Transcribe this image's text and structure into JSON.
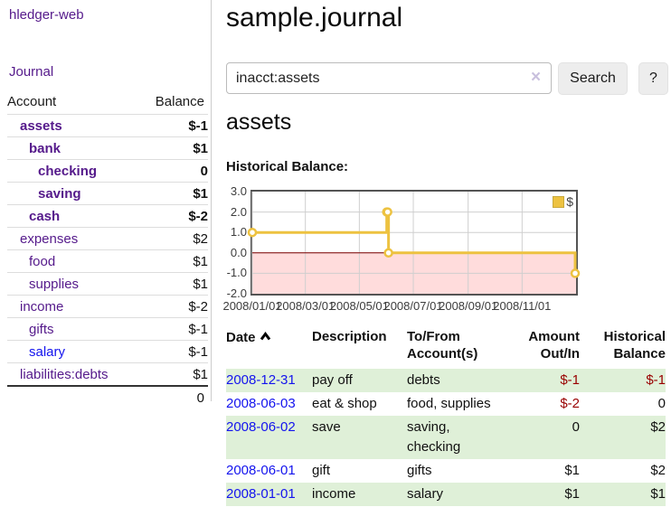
{
  "app": {
    "title": "hledger-web",
    "nav_journal": "Journal"
  },
  "sidebar": {
    "col_account": "Account",
    "col_balance": "Balance",
    "accounts": [
      {
        "name": "assets",
        "indent": 1,
        "bold": true,
        "balance": "$-1",
        "negative": true
      },
      {
        "name": "bank",
        "indent": 2,
        "bold": true,
        "balance": "$1"
      },
      {
        "name": "checking",
        "indent": 3,
        "bold": true,
        "balance": "0"
      },
      {
        "name": "saving",
        "indent": 3,
        "bold": true,
        "balance": "$1"
      },
      {
        "name": "cash",
        "indent": 2,
        "bold": true,
        "balance": "$-2",
        "negative": true
      },
      {
        "name": "expenses",
        "indent": 1,
        "bold": false,
        "balance": "$2"
      },
      {
        "name": "food",
        "indent": 2,
        "bold": false,
        "balance": "$1"
      },
      {
        "name": "supplies",
        "indent": 2,
        "bold": false,
        "balance": "$1"
      },
      {
        "name": "income",
        "indent": 1,
        "bold": false,
        "balance": "$-2",
        "negative": true,
        "muted": true
      },
      {
        "name": "gifts",
        "indent": 2,
        "bold": false,
        "balance": "$-1",
        "negative": true,
        "muted": true
      },
      {
        "name": "salary",
        "indent": 2,
        "bold": false,
        "balance": "$-1",
        "negative": true,
        "muted": true,
        "link_color": "blue"
      },
      {
        "name": "liabilities:debts",
        "indent": 1,
        "bold": false,
        "balance": "$1"
      }
    ],
    "total": "0"
  },
  "header": {
    "title": "sample.journal"
  },
  "search": {
    "value": "inacct:assets",
    "button": "Search",
    "help_button": "?"
  },
  "icons": {
    "clear_search": "×",
    "sort_ascending": "chevron-up"
  },
  "account_page": {
    "title": "assets",
    "chart_label": "Historical Balance:"
  },
  "chart_data": {
    "type": "line",
    "title": "Historical Balance",
    "series": [
      {
        "name": "$",
        "color": "#edc240",
        "steps": true,
        "points": [
          [
            "2008-01-01",
            1
          ],
          [
            "2008-06-01",
            2
          ],
          [
            "2008-06-02",
            2
          ],
          [
            "2008-06-03",
            0
          ],
          [
            "2008-12-31",
            -1
          ]
        ]
      }
    ],
    "x_range": [
      "2008-01-01",
      "2009-01-01"
    ],
    "x_ticks": [
      "2008/01/01",
      "2008/03/01",
      "2008/05/01",
      "2008/07/01",
      "2008/09/01",
      "2008/11/01"
    ],
    "y_ticks": [
      "3.0",
      "2.0",
      "1.0",
      "0.0",
      "-1.0",
      "-2.0"
    ],
    "ylim": [
      -2,
      3
    ],
    "grid": true,
    "grid_color": "#cfcfcf",
    "border_color": "#545454",
    "negative_region_color": "#ffdcdc",
    "zero_line_color": "#800000",
    "legend": "$",
    "legend_position": "top-right"
  },
  "register": {
    "columns": {
      "date": "Date",
      "description": "Description",
      "accounts": "To/From Account(s)",
      "amount": "Amount Out/In",
      "balance": "Historical Balance"
    },
    "rows": [
      {
        "date": "2008-12-31",
        "description": "pay off",
        "accounts": "debts",
        "amount": "$-1",
        "amount_negative": true,
        "balance": "$-1",
        "balance_negative": true
      },
      {
        "date": "2008-06-03",
        "description": "eat & shop",
        "accounts": "food, supplies",
        "amount": "$-2",
        "amount_negative": true,
        "balance": "0"
      },
      {
        "date": "2008-06-02",
        "description": "save",
        "accounts": "saving, checking",
        "amount": "0",
        "balance": "$2"
      },
      {
        "date": "2008-06-01",
        "description": "gift",
        "accounts": "gifts",
        "amount": "$1",
        "balance": "$2"
      },
      {
        "date": "2008-01-01",
        "description": "income",
        "accounts": "salary",
        "amount": "$1",
        "balance": "$1"
      }
    ]
  }
}
